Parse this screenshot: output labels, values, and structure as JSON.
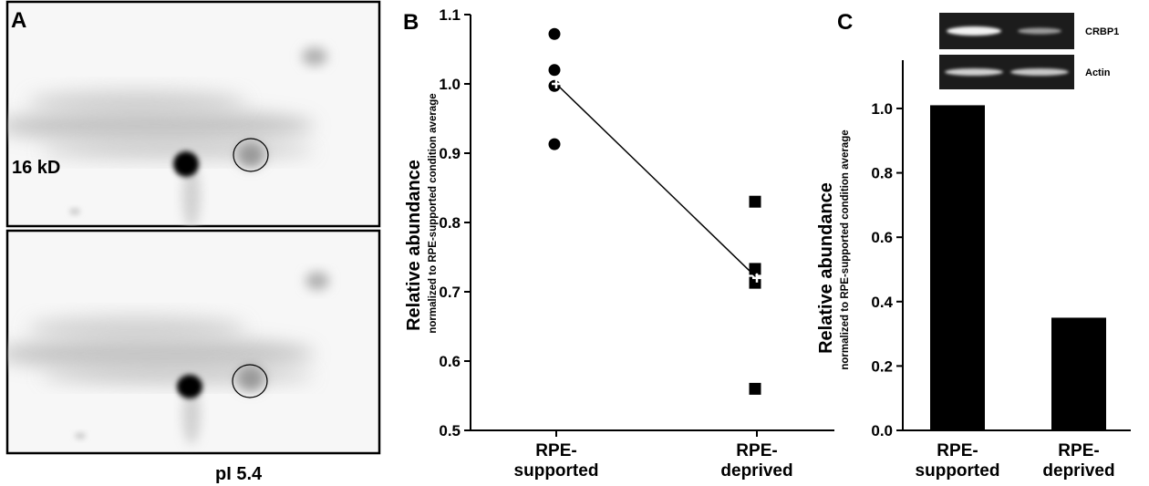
{
  "panel_a": {
    "label": "A",
    "marker_label": "16 kD",
    "pi_label": "pI 5.4"
  },
  "chart_data": [
    {
      "panel_label": "B",
      "type": "scatter",
      "categories": [
        "RPE-\nsupported",
        "RPE-\ndeprived"
      ],
      "series": [
        {
          "marker": "circle",
          "category": "RPE-\nsupported",
          "values": [
            1.072,
            1.02,
            0.997,
            0.913
          ]
        },
        {
          "marker": "square",
          "category": "RPE-\ndeprived",
          "values": [
            0.83,
            0.733,
            0.713,
            0.56
          ]
        }
      ],
      "means": [
        1.0,
        0.72
      ],
      "mean_line": true,
      "ylabel": "Relative abundance",
      "ylabel_sub": "normalized to RPE-supported condition average",
      "ylim": [
        0.5,
        1.1
      ],
      "yticks": [
        "0.5",
        "0.6",
        "0.7",
        "0.8",
        "0.9",
        "1.0",
        "1.1"
      ],
      "grid": false
    },
    {
      "panel_label": "C",
      "type": "bar",
      "categories": [
        "RPE-\nsupported",
        "RPE-\ndeprived"
      ],
      "values": [
        1.01,
        0.35
      ],
      "ylabel": "Relative abundance",
      "ylabel_sub": "normalized to RPE-supported condition average",
      "ylim": [
        0,
        1.15
      ],
      "yticks": [
        "0.0",
        "0.2",
        "0.4",
        "0.6",
        "0.8",
        "1.0"
      ],
      "gel_labels": [
        "CRBP1",
        "Actin"
      ],
      "grid": false
    }
  ],
  "colors": {
    "ink": "#000000",
    "background": "#ffffff"
  }
}
